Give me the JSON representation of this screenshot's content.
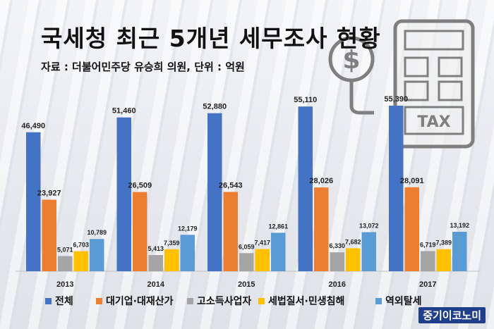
{
  "header": {
    "title": "국세청 최근 5개년 세무조사 현황",
    "source": "자료 : 더불어민주당 유승희 의원, 단위 : 억원"
  },
  "brand": "중기이코노미",
  "decoration": {
    "tax_icon_label": "TAX"
  },
  "chart_data": {
    "type": "bar",
    "title": "국세청 최근 5개년 세무조사 현황",
    "xlabel": "",
    "ylabel": "",
    "unit": "억원",
    "categories": [
      "2013",
      "2014",
      "2015",
      "2016",
      "2017"
    ],
    "series": [
      {
        "name": "전체",
        "color": "#4472c4",
        "values": [
          46490,
          51460,
          52880,
          55110,
          55390
        ]
      },
      {
        "name": "대기업·대재산가",
        "color": "#ed7d31",
        "values": [
          23927,
          26509,
          26543,
          28026,
          28091
        ]
      },
      {
        "name": "고소득사업자",
        "color": "#a5a5a5",
        "values": [
          5071,
          5413,
          6059,
          6330,
          6719
        ]
      },
      {
        "name": "세법질서·민생침해",
        "color": "#ffc000",
        "values": [
          6703,
          7359,
          7417,
          7682,
          7389
        ]
      },
      {
        "name": "역외탈세",
        "color": "#5b9bd5",
        "values": [
          10789,
          12179,
          12861,
          13072,
          13192
        ]
      }
    ],
    "legend_position": "bottom",
    "grid": false
  }
}
